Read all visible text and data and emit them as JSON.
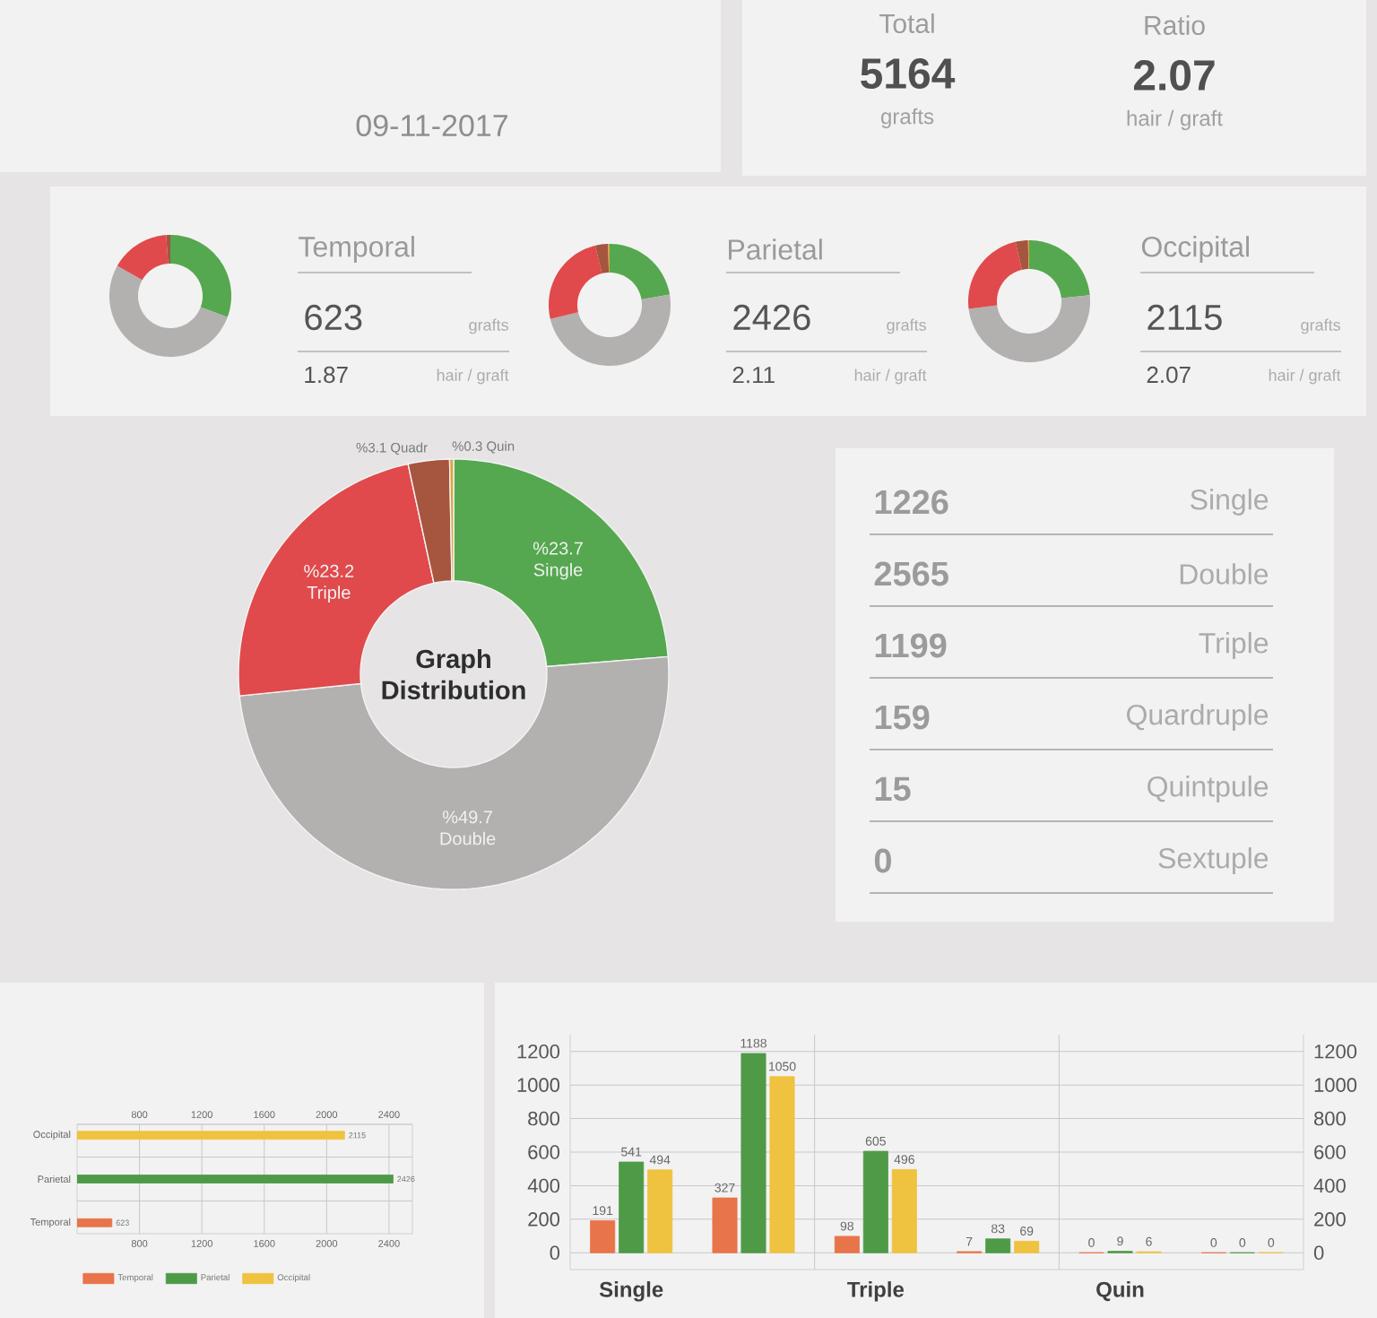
{
  "chart_data": [
    {
      "type": "other",
      "annotations": [
        "09-11-2017",
        "Total",
        "5164",
        "grafts",
        "Ratio",
        "2.07",
        "hair / graft"
      ]
    },
    {
      "type": "donut",
      "title": "Temporal",
      "categories": [
        null,
        null,
        null,
        null
      ],
      "values": [
        30.7,
        52.5,
        15.7,
        1.1
      ],
      "colors": [
        "#55a84f",
        "#b3b0b0",
        "#e04a4c",
        "#a6553f"
      ],
      "annotations": [
        "623",
        "grafts",
        "1.87",
        "hair / graft"
      ]
    },
    {
      "type": "donut",
      "title": "Parietal",
      "categories": [
        null,
        null,
        null,
        null,
        null
      ],
      "values": [
        22.3,
        49.0,
        24.9,
        3.4,
        0.4
      ],
      "colors": [
        "#55a84f",
        "#b3b0b0",
        "#e04a4c",
        "#a6553f",
        "#d9a441"
      ],
      "annotations": [
        "2426",
        "grafts",
        "2.11",
        "hair / graft"
      ]
    },
    {
      "type": "donut",
      "title": "Occipital",
      "categories": [
        null,
        null,
        null,
        null,
        null
      ],
      "values": [
        23.4,
        49.6,
        23.4,
        3.3,
        0.3
      ],
      "colors": [
        "#55a84f",
        "#b3b0b0",
        "#e04a4c",
        "#a6553f",
        "#d9a441"
      ],
      "annotations": [
        "2115",
        "grafts",
        "2.07",
        "hair / graft"
      ]
    },
    {
      "type": "donut",
      "title": "Graph Distribution",
      "categories": [
        "Single",
        "Double",
        "Triple",
        "Quadr",
        "Quin"
      ],
      "values": [
        23.7,
        49.7,
        23.2,
        3.1,
        0.3
      ],
      "value_labels": [
        "%23.7",
        "%49.7",
        "%23.2",
        "%3.1",
        "%0.3"
      ],
      "colors": [
        "#55a84f",
        "#b3b0b0",
        "#e04a4c",
        "#a6553f",
        "#d9a441"
      ]
    },
    {
      "type": "other",
      "annotations": [
        "1226",
        "Single",
        "2565",
        "Double",
        "1199",
        "Triple",
        "159",
        "Quardruple",
        "15",
        "Quintpule",
        "0",
        "Sextuple"
      ]
    },
    {
      "type": "bar",
      "orientation": "horizontal",
      "categories": [
        "Occipital",
        "Parietal",
        "Temporal"
      ],
      "series": [
        {
          "name": "Temporal",
          "color": "#e8744a",
          "values": [
            null,
            null,
            623
          ]
        },
        {
          "name": "Parietal",
          "color": "#4e9a47",
          "values": [
            null,
            2426,
            null
          ]
        },
        {
          "name": "Occipital",
          "color": "#efc23f",
          "values": [
            2115,
            null,
            null
          ]
        }
      ],
      "xlim": [
        400,
        2550
      ],
      "xticks": [
        800,
        1200,
        1600,
        2000,
        2400
      ],
      "x2lim": [
        400,
        2550
      ],
      "x2ticks": [
        800,
        1200,
        1600,
        2000,
        2400
      ],
      "grid": true,
      "legend": "bottom",
      "data_labels": true
    },
    {
      "type": "bar",
      "categories": [
        "Single",
        null,
        "Triple",
        null,
        "Quin",
        null
      ],
      "series": [
        {
          "color": "#e8744a",
          "values": [
            191,
            327,
            98,
            7,
            0,
            0
          ]
        },
        {
          "color": "#4e9a47",
          "values": [
            541,
            1188,
            605,
            83,
            9,
            0
          ]
        },
        {
          "color": "#efc23f",
          "values": [
            494,
            1050,
            496,
            69,
            6,
            0
          ]
        }
      ],
      "ylim": [
        -100,
        1300
      ],
      "yticks": [
        0,
        200,
        400,
        600,
        800,
        1000,
        1200
      ],
      "y2lim": [
        -100,
        1300
      ],
      "y2ticks": [
        0,
        200,
        400,
        600,
        800,
        1000,
        1200
      ],
      "grid": true,
      "data_labels": true
    }
  ]
}
